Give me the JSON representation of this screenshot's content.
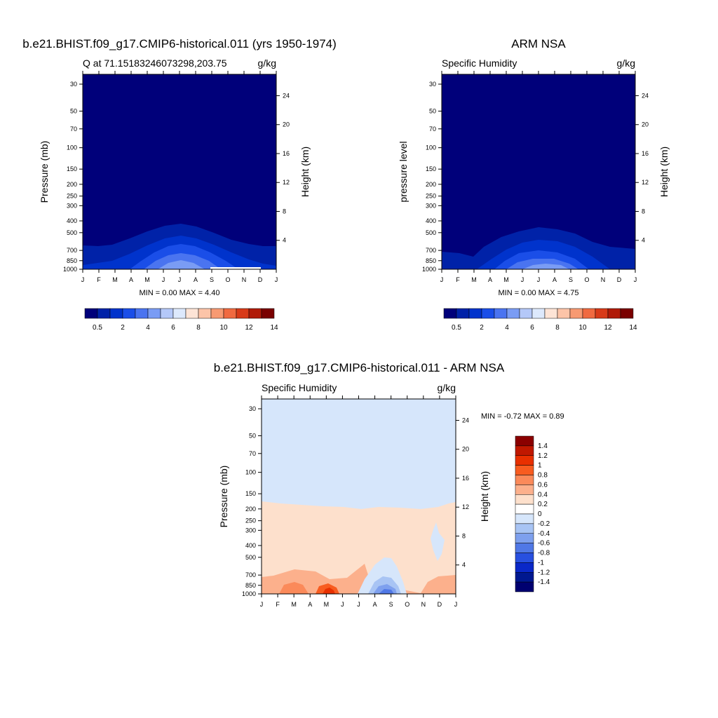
{
  "panels": [
    {
      "title": "b.e21.BHIST.f09_g17.CMIP6-historical.011 (yrs 1950-1974)",
      "left_label": "Q at 71.15183246073298,203.75",
      "right_label": "g/kg",
      "y_label_left": "Pressure (mb)",
      "y_label_right": "Height (km)",
      "stats": "MIN =   0.00 MAX =   4.40"
    },
    {
      "title": "ARM NSA",
      "left_label": "Specific Humidity",
      "right_label": "g/kg",
      "y_label_left": "pressure level",
      "y_label_right": "Height (km)",
      "stats": "MIN =   0.00 MAX =   4.75"
    },
    {
      "title": "b.e21.BHIST.f09_g17.CMIP6-historical.011 - ARM NSA",
      "left_label": "Specific Humidity",
      "right_label": "g/kg",
      "y_label_left": "Pressure (mb)",
      "y_label_right": "Height (km)",
      "stats": "MIN =  -0.72 MAX =   0.89"
    }
  ],
  "chart_data": [
    {
      "type": "heatmap",
      "title": "b.e21.BHIST.f09_g17.CMIP6-historical.011 (yrs 1950-1974)",
      "x_ticks": [
        "J",
        "F",
        "M",
        "A",
        "M",
        "J",
        "J",
        "A",
        "S",
        "O",
        "N",
        "D",
        "J"
      ],
      "y_ticks_left": [
        "30",
        "50",
        "70",
        "100",
        "150",
        "200",
        "250",
        "300",
        "400",
        "500",
        "700",
        "850",
        "1000"
      ],
      "y_ticks_right": [
        "24",
        "20",
        "16",
        "12",
        "8",
        "4"
      ],
      "ylabel": "Pressure (mb)",
      "ylabel_right": "Height (km)",
      "units": "g/kg",
      "min": 0.0,
      "max": 4.4,
      "colorbar_labels": [
        "0.5",
        "2",
        "4",
        "6",
        "8",
        "10",
        "12",
        "14"
      ],
      "colors": [
        "#00007a",
        "#0022a8",
        "#0033cc",
        "#1a4ee8",
        "#4a74f0",
        "#7a9cf4",
        "#b4c8f8",
        "#dde9fc",
        "#fde4d6",
        "#fcc4a8",
        "#f79a72",
        "#f06a40",
        "#d83a18",
        "#b01a08",
        "#7a0000"
      ]
    },
    {
      "type": "heatmap",
      "title": "ARM NSA",
      "x_ticks": [
        "J",
        "F",
        "M",
        "A",
        "M",
        "J",
        "J",
        "A",
        "S",
        "O",
        "N",
        "D",
        "J"
      ],
      "y_ticks_left": [
        "30",
        "50",
        "70",
        "100",
        "150",
        "200",
        "250",
        "300",
        "400",
        "500",
        "700",
        "850",
        "1000"
      ],
      "y_ticks_right": [
        "24",
        "20",
        "16",
        "12",
        "8",
        "4"
      ],
      "ylabel": "pressure level",
      "ylabel_right": "Height (km)",
      "units": "g/kg",
      "min": 0.0,
      "max": 4.75,
      "colorbar_labels": [
        "0.5",
        "2",
        "4",
        "6",
        "8",
        "10",
        "12",
        "14"
      ]
    },
    {
      "type": "heatmap",
      "title": "b.e21.BHIST.f09_g17.CMIP6-historical.011 - ARM NSA",
      "x_ticks": [
        "J",
        "F",
        "M",
        "A",
        "M",
        "J",
        "J",
        "A",
        "S",
        "O",
        "N",
        "D",
        "J"
      ],
      "y_ticks_left": [
        "30",
        "50",
        "70",
        "100",
        "150",
        "200",
        "250",
        "300",
        "400",
        "500",
        "700",
        "850",
        "1000"
      ],
      "y_ticks_right": [
        "24",
        "20",
        "16",
        "12",
        "8",
        "4"
      ],
      "ylabel": "Pressure (mb)",
      "ylabel_right": "Height (km)",
      "units": "g/kg",
      "min": -0.72,
      "max": 0.89,
      "colorbar_labels": [
        "1.4",
        "1.2",
        "1",
        "0.8",
        "0.6",
        "0.4",
        "0.2",
        "0",
        "-0.2",
        "-0.4",
        "-0.6",
        "-0.8",
        "-1",
        "-1.2",
        "-1.4"
      ],
      "colors": [
        "#8b0000",
        "#c01800",
        "#e83000",
        "#f85c20",
        "#fb8a5a",
        "#fcb08c",
        "#fde0cc",
        "#ffffff",
        "#d6e6fb",
        "#a8c4f4",
        "#7ea0ee",
        "#5078e6",
        "#2850e0",
        "#0a28c8",
        "#001890",
        "#000070"
      ]
    }
  ]
}
